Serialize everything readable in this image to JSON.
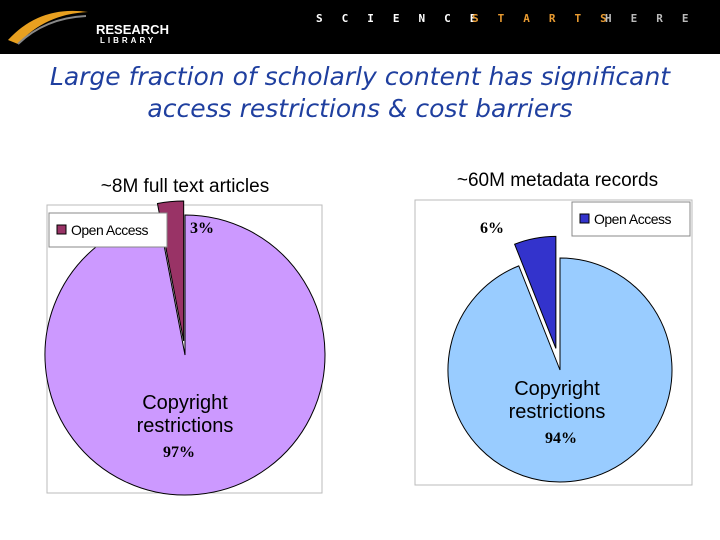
{
  "header": {
    "logo_top": "RESEARCH",
    "logo_bottom": "LIBRARY",
    "slogan": [
      "SCIENCE",
      "STARTS",
      "HERE"
    ]
  },
  "title": [
    "Large fraction of scholarly content has significant",
    "access restrictions & cost barriers"
  ],
  "chart_data": [
    {
      "type": "pie",
      "title": "~8M full text articles",
      "categories": [
        "Open Access",
        "Copyright restrictions"
      ],
      "values": [
        3,
        97
      ],
      "value_labels": [
        "3%",
        "97%"
      ],
      "colors": [
        "#993366",
        "#cc99ff"
      ],
      "legend": "top-left"
    },
    {
      "type": "pie",
      "title": "~60M metadata records",
      "categories": [
        "Open Access",
        "Copyright restrictions"
      ],
      "values": [
        6,
        94
      ],
      "value_labels": [
        "6%",
        "94%"
      ],
      "colors": [
        "#3333cc",
        "#99ccff"
      ],
      "legend": "top-right"
    }
  ]
}
